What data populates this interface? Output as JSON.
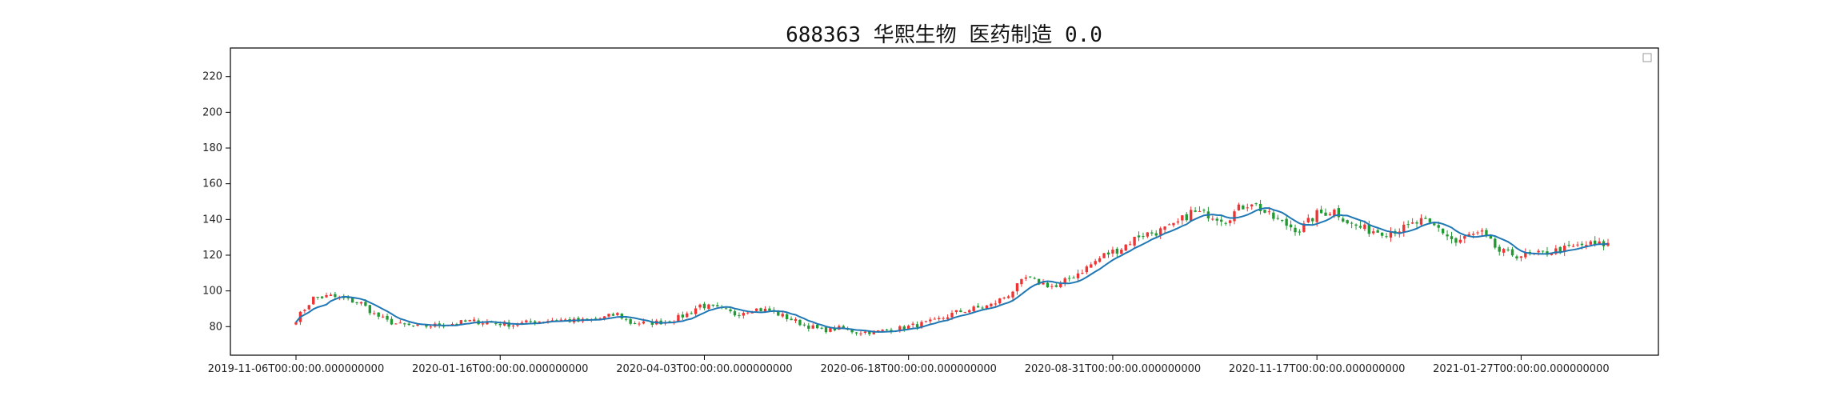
{
  "chart_data": {
    "type": "candlestick",
    "title": "688363 华熙生物 医药制造 0.0",
    "xlabel": "",
    "ylabel": "",
    "ylim": [
      64,
      236
    ],
    "yticks": [
      80,
      100,
      120,
      140,
      160,
      180,
      200,
      220
    ],
    "xticks": [
      "2019-11-06T00:00:00.000000000",
      "2020-01-16T00:00:00.000000000",
      "2020-04-03T00:00:00.000000000",
      "2020-06-18T00:00:00.000000000",
      "2020-08-31T00:00:00.000000000",
      "2020-11-17T00:00:00.000000000",
      "2021-01-27T00:00:00.000000000"
    ],
    "xtick_index": [
      0,
      47,
      94,
      141,
      188,
      235,
      282
    ],
    "n_bars": 303,
    "legend": {
      "placement": "top-right",
      "entries": []
    },
    "colors": {
      "up": "#ee3333",
      "down": "#229933",
      "ma": "#1f77b4"
    },
    "close_anchors": [
      [
        0,
        84
      ],
      [
        2,
        90
      ],
      [
        4,
        96
      ],
      [
        8,
        97
      ],
      [
        12,
        95
      ],
      [
        15,
        93
      ],
      [
        18,
        87
      ],
      [
        21,
        83
      ],
      [
        24,
        81
      ],
      [
        28,
        80
      ],
      [
        34,
        81
      ],
      [
        40,
        83
      ],
      [
        46,
        82
      ],
      [
        50,
        81
      ],
      [
        55,
        83
      ],
      [
        60,
        84
      ],
      [
        65,
        83
      ],
      [
        69,
        84
      ],
      [
        74,
        87
      ],
      [
        77,
        82
      ],
      [
        81,
        82
      ],
      [
        86,
        83
      ],
      [
        90,
        87
      ],
      [
        93,
        92
      ],
      [
        97,
        90
      ],
      [
        101,
        87
      ],
      [
        105,
        90
      ],
      [
        109,
        89
      ],
      [
        113,
        85
      ],
      [
        117,
        81
      ],
      [
        121,
        78
      ],
      [
        125,
        79
      ],
      [
        129,
        77
      ],
      [
        133,
        77
      ],
      [
        139,
        79
      ],
      [
        143,
        81
      ],
      [
        147,
        83
      ],
      [
        152,
        88
      ],
      [
        156,
        90
      ],
      [
        160,
        92
      ],
      [
        164,
        98
      ],
      [
        168,
        107
      ],
      [
        172,
        104
      ],
      [
        175,
        102
      ],
      [
        178,
        107
      ],
      [
        182,
        113
      ],
      [
        186,
        120
      ],
      [
        190,
        124
      ],
      [
        194,
        131
      ],
      [
        198,
        133
      ],
      [
        202,
        136
      ],
      [
        206,
        144
      ],
      [
        210,
        143
      ],
      [
        214,
        140
      ],
      [
        217,
        146
      ],
      [
        220,
        150
      ],
      [
        224,
        142
      ],
      [
        228,
        137
      ],
      [
        231,
        134
      ],
      [
        235,
        143
      ],
      [
        239,
        145
      ],
      [
        243,
        137
      ],
      [
        247,
        134
      ],
      [
        251,
        133
      ],
      [
        255,
        135
      ],
      [
        259,
        139
      ],
      [
        263,
        135
      ],
      [
        267,
        127
      ],
      [
        270,
        131
      ],
      [
        273,
        132
      ],
      [
        277,
        122
      ],
      [
        281,
        120
      ],
      [
        285,
        120
      ],
      [
        289,
        122
      ],
      [
        293,
        124
      ],
      [
        297,
        126
      ],
      [
        301,
        126
      ]
    ]
  }
}
